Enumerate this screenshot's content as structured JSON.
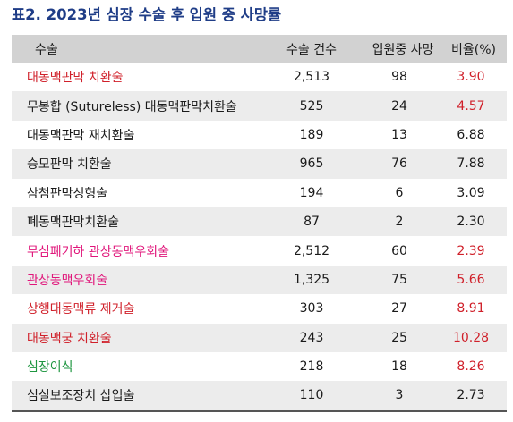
{
  "title": "표2. 2023년 심장 수술 후 입원 중 사망률",
  "colors": {
    "title": "#1f3d87",
    "header_bg": "#d2d2d2",
    "row_alt_bg": "#ececec",
    "default_text": "#1a1a1a",
    "red": "#d0202a",
    "magenta": "#e0157a",
    "green": "#1e9640"
  },
  "table": {
    "headers": {
      "name": "수술",
      "count": "수술 건수",
      "death": "입원중 사망",
      "ratio": "비율(%)"
    },
    "rows": [
      {
        "name": "대동맥판막 치환술",
        "count": "2,513",
        "death": "98",
        "ratio": "3.90",
        "name_color": "#d0202a",
        "ratio_color": "#d0202a"
      },
      {
        "name": "무봉합 (Sutureless) 대동맥판막치환술",
        "count": "525",
        "death": "24",
        "ratio": "4.57",
        "name_color": "#1a1a1a",
        "ratio_color": "#d0202a"
      },
      {
        "name": "대동맥판막 재치환술",
        "count": "189",
        "death": "13",
        "ratio": "6.88",
        "name_color": "#1a1a1a",
        "ratio_color": "#1a1a1a"
      },
      {
        "name": "승모판막 치환술",
        "count": "965",
        "death": "76",
        "ratio": "7.88",
        "name_color": "#1a1a1a",
        "ratio_color": "#1a1a1a"
      },
      {
        "name": "삼첨판막성형술",
        "count": "194",
        "death": "6",
        "ratio": "3.09",
        "name_color": "#1a1a1a",
        "ratio_color": "#1a1a1a"
      },
      {
        "name": "폐동맥판막치환술",
        "count": "87",
        "death": "2",
        "ratio": "2.30",
        "name_color": "#1a1a1a",
        "ratio_color": "#1a1a1a"
      },
      {
        "name": "무심폐기하 관상동맥우회술",
        "count": "2,512",
        "death": "60",
        "ratio": "2.39",
        "name_color": "#e0157a",
        "ratio_color": "#d0202a"
      },
      {
        "name": "관상동맥우회술",
        "count": "1,325",
        "death": "75",
        "ratio": "5.66",
        "name_color": "#e0157a",
        "ratio_color": "#d0202a"
      },
      {
        "name": "상행대동맥류 제거술",
        "count": "303",
        "death": "27",
        "ratio": "8.91",
        "name_color": "#d0202a",
        "ratio_color": "#d0202a"
      },
      {
        "name": "대동맥궁 치환술",
        "count": "243",
        "death": "25",
        "ratio": "10.28",
        "name_color": "#d0202a",
        "ratio_color": "#d0202a"
      },
      {
        "name": "심장이식",
        "count": "218",
        "death": "18",
        "ratio": "8.26",
        "name_color": "#1e9640",
        "ratio_color": "#d0202a"
      },
      {
        "name": "심실보조장치 삽입술",
        "count": "110",
        "death": "3",
        "ratio": "2.73",
        "name_color": "#1a1a1a",
        "ratio_color": "#1a1a1a"
      }
    ]
  }
}
